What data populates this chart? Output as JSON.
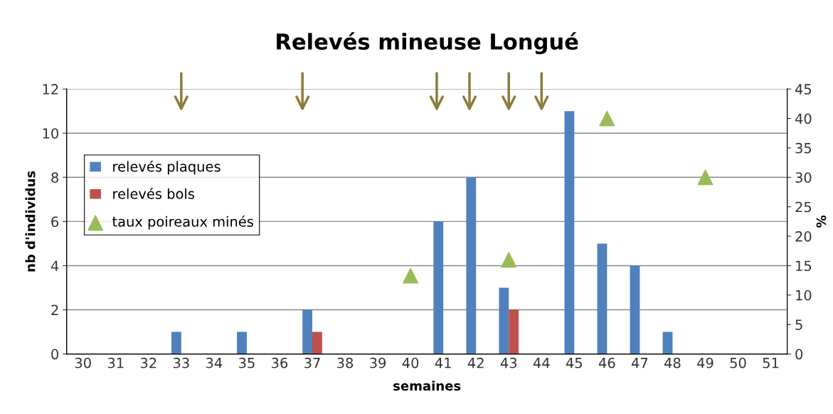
{
  "chart_data": {
    "type": "bar",
    "title": "Relevés mineuse Longué",
    "xlabel": "semaines",
    "ylabel": "nb d'individus",
    "y2label": "%",
    "categories": [
      "30",
      "31",
      "32",
      "33",
      "34",
      "35",
      "36",
      "37",
      "38",
      "39",
      "40",
      "41",
      "42",
      "43",
      "44",
      "45",
      "46",
      "47",
      "48",
      "49",
      "50",
      "51"
    ],
    "series": [
      {
        "name": "relevés plaques",
        "color": "#4f81bd",
        "values": [
          0,
          0,
          0,
          1,
          0,
          1,
          0,
          2,
          0,
          0,
          0,
          6,
          8,
          3,
          0,
          11,
          5,
          4,
          1,
          0,
          0,
          0
        ]
      },
      {
        "name": "relevés bols",
        "color": "#c0504d",
        "values": [
          0,
          0,
          0,
          0,
          0,
          0,
          0,
          1,
          0,
          0,
          0,
          0,
          0,
          2,
          0,
          0,
          0,
          0,
          0,
          0,
          0,
          0
        ]
      },
      {
        "name": "taux poireaux minés",
        "type": "scatter",
        "axis": "y2",
        "color": "#9bbb59",
        "marker": "triangle",
        "x": [
          "40",
          "43",
          "46",
          "49"
        ],
        "values": [
          13.3,
          16,
          40,
          30
        ]
      }
    ],
    "ylim": [
      0,
      12
    ],
    "yticks": [
      0,
      2,
      4,
      6,
      8,
      10,
      12
    ],
    "y2lim": [
      0,
      45
    ],
    "y2ticks": [
      0,
      5,
      10,
      15,
      20,
      25,
      30,
      35,
      40,
      45
    ],
    "grid": "y",
    "legend": "left"
  }
}
